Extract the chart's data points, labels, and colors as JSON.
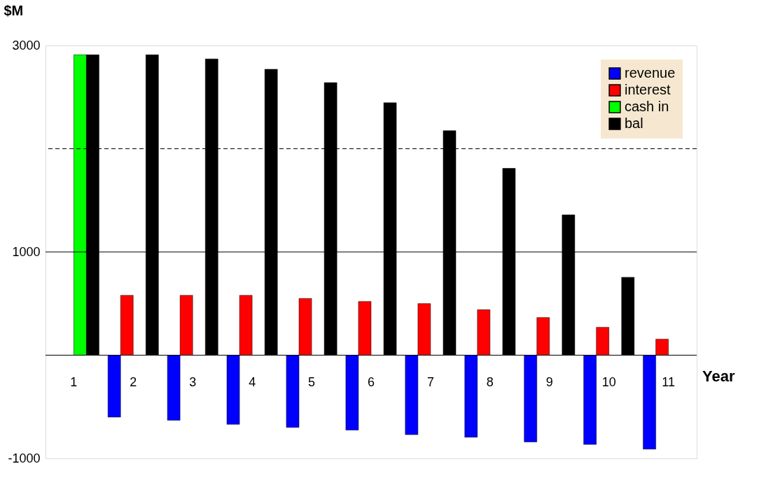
{
  "chart_data": {
    "type": "bar",
    "ylabel": "$M",
    "xlabel": "Year",
    "categories": [
      "1",
      "2",
      "3",
      "4",
      "5",
      "6",
      "7",
      "8",
      "9",
      "10",
      "11"
    ],
    "series": [
      {
        "name": "revenue",
        "color": "#0000ff",
        "values": [
          null,
          -600,
          -630,
          -670,
          -700,
          -725,
          -770,
          -795,
          -840,
          -865,
          -910
        ]
      },
      {
        "name": "interest",
        "color": "#ff0000",
        "values": [
          null,
          580,
          580,
          580,
          550,
          520,
          500,
          440,
          365,
          270,
          155
        ]
      },
      {
        "name": "cash in",
        "color": "#00ff00",
        "values": [
          2910,
          null,
          null,
          null,
          null,
          null,
          null,
          null,
          null,
          null,
          null
        ]
      },
      {
        "name": "bal",
        "color": "#000000",
        "values": [
          2910,
          2910,
          2870,
          2770,
          2640,
          2445,
          2175,
          1810,
          1360,
          755,
          null
        ]
      }
    ],
    "ylim": [
      -1000,
      3000
    ],
    "yticks": [
      3000,
      1000,
      -1000
    ],
    "ref_lines": [
      {
        "axis": "y",
        "value": 1000,
        "line_style": "solid",
        "color": "#000000"
      },
      {
        "axis": "y",
        "value": 2000,
        "line_style": "dashed",
        "color": "#000000"
      }
    ],
    "grid": false,
    "legend": "top right"
  }
}
